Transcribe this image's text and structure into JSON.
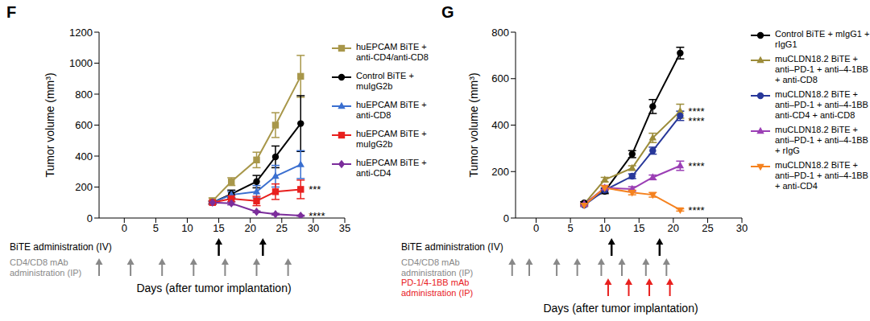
{
  "chart_data": [
    {
      "type": "line",
      "title": "F",
      "x_label": "Days (after tumor implantation)",
      "y_label": "Tumor volume (mm³)",
      "xlim": [
        -4,
        35
      ],
      "xticks": [
        0,
        5,
        10,
        15,
        20,
        25,
        30,
        35
      ],
      "ylim": [
        0,
        1200
      ],
      "yticks": [
        0,
        200,
        400,
        600,
        800,
        1000,
        1200
      ],
      "x": [
        14,
        17,
        21,
        24,
        28
      ],
      "series": [
        {
          "name": "huEPCAM BiTE + anti-CD4/anti-CD8",
          "color": "#a8974a",
          "marker": "square",
          "values": [
            110,
            235,
            375,
            600,
            915
          ],
          "error": [
            20,
            25,
            50,
            80,
            135
          ]
        },
        {
          "name": "Control BiTE + muIgG2b",
          "color": "#000000",
          "marker": "circle",
          "values": [
            100,
            155,
            235,
            395,
            610
          ],
          "error": [
            10,
            25,
            40,
            70,
            180
          ]
        },
        {
          "name": "huEPCAM BiTE + anti-CD8",
          "color": "#3a6fd0",
          "marker": "triangle",
          "values": [
            100,
            150,
            170,
            270,
            345
          ],
          "error": [
            10,
            20,
            40,
            70,
            90
          ]
        },
        {
          "name": "huEPCAM BiTE + muIgG2b",
          "color": "#e8201e",
          "marker": "square",
          "values": [
            100,
            125,
            110,
            170,
            185
          ],
          "error": [
            10,
            20,
            30,
            50,
            60
          ],
          "annotation": "***"
        },
        {
          "name": "huEPCAM BiTE + anti-CD4",
          "color": "#7b2d9b",
          "marker": "diamond",
          "values": [
            100,
            95,
            40,
            25,
            15
          ],
          "error": [
            5,
            10,
            5,
            5,
            3
          ],
          "annotation": "****"
        }
      ],
      "schedule": [
        {
          "label": [
            "BiTE administration (IV)"
          ],
          "color": "#000000",
          "days": [
            15,
            22
          ]
        },
        {
          "label": [
            "CD4/CD8 mAb",
            "administration (IP)"
          ],
          "color": "#888888",
          "days": [
            -4,
            1,
            6,
            11,
            16,
            21,
            26
          ]
        }
      ]
    },
    {
      "type": "line",
      "title": "G",
      "x_label": "Days (after tumor implantation)",
      "y_label": "Tumor volume (mm³)",
      "xlim": [
        -3,
        30
      ],
      "xticks": [
        0,
        5,
        10,
        15,
        20,
        25,
        30
      ],
      "ylim": [
        0,
        800
      ],
      "yticks": [
        0,
        200,
        400,
        600,
        800
      ],
      "x": [
        7,
        10,
        14,
        17,
        21
      ],
      "series": [
        {
          "name": "Control BiTE + mIgG1 + rIgG1",
          "color": "#000000",
          "marker": "circle",
          "values": [
            65,
            115,
            275,
            480,
            710
          ],
          "error": [
            5,
            10,
            15,
            30,
            25
          ]
        },
        {
          "name": "muCLDN18.2 BiTE + anti–PD-1 + anti–4-1BB + anti-CD8",
          "color": "#9c8c3a",
          "marker": "triangle",
          "values": [
            60,
            165,
            215,
            345,
            460
          ],
          "error": [
            5,
            10,
            10,
            20,
            30
          ],
          "annotation": "****"
        },
        {
          "name": "muCLDN18.2 BiTE + anti–PD-1 + anti–4-1BB anti-CD4 + anti-CD8",
          "color": "#28389a",
          "marker": "circle",
          "values": [
            55,
            120,
            180,
            290,
            440
          ],
          "error": [
            5,
            10,
            10,
            15,
            20
          ],
          "annotation": "****"
        },
        {
          "name": "muCLDN18.2 BiTE + anti–PD-1 + anti–4-1BB + rIgG",
          "color": "#9b3fb5",
          "marker": "triangle",
          "values": [
            60,
            130,
            125,
            175,
            225
          ],
          "error": [
            5,
            10,
            10,
            10,
            20
          ],
          "annotation": "****"
        },
        {
          "name": "muCLDN18.2 BiTE + anti–PD-1 + anti–4-1BB + anti-CD4",
          "color": "#f5821f",
          "marker": "triangle-down",
          "values": [
            55,
            130,
            110,
            100,
            35
          ],
          "error": [
            5,
            10,
            10,
            10,
            5
          ],
          "annotation": "****"
        }
      ],
      "schedule": [
        {
          "label": [
            "BiTE administration (IV)"
          ],
          "color": "#000000",
          "days": [
            11,
            18
          ]
        },
        {
          "label": [
            "CD4/CD8 mAb",
            "administration (IP)"
          ],
          "color": "#888888",
          "days": [
            -3.5,
            -1,
            3,
            6,
            9.5,
            12.5,
            16,
            19
          ]
        },
        {
          "label": [
            "PD-1/4-1BB mAb",
            "administration (IP)"
          ],
          "color": "#e8201e",
          "days": [
            10.5,
            13.5,
            16.5,
            19.5
          ]
        }
      ]
    }
  ]
}
